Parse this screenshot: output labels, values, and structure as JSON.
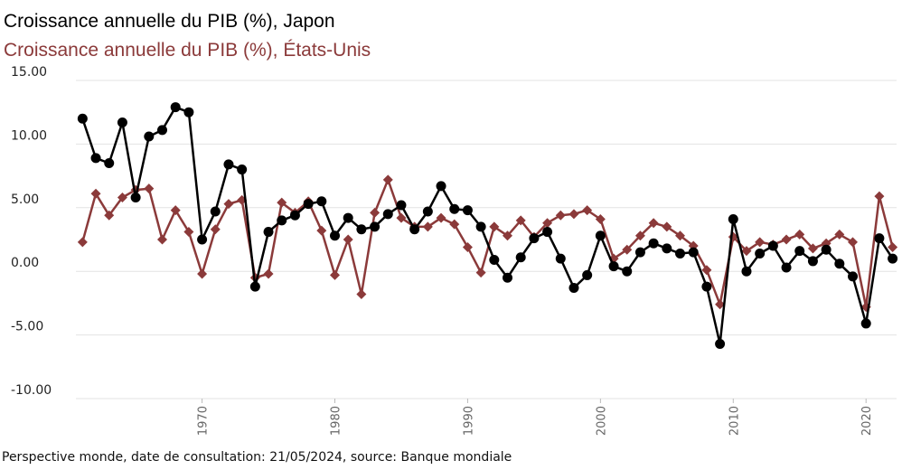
{
  "chart_data": {
    "type": "line",
    "title": "Croissance annuelle du PIB (%), Japon",
    "subtitle": "Croissance annuelle du PIB (%), États-Unis",
    "source": "Perspective monde, date de consultation: 21/05/2024, source: Banque mondiale",
    "ylim": [
      -10,
      15
    ],
    "xlim": [
      1960.5,
      2022.3
    ],
    "yticks": [
      "15.00",
      "10.00",
      "5.00",
      "0.00",
      "-5.00",
      "-10.00"
    ],
    "ytick_values": [
      15,
      10,
      5,
      0,
      -5,
      -10
    ],
    "xticks": [
      "1970",
      "1980",
      "1990",
      "2000",
      "2010",
      "2020"
    ],
    "xtick_values": [
      1970,
      1980,
      1990,
      2000,
      2010,
      2020
    ],
    "grid": true,
    "legend": "none",
    "x": [
      1961,
      1962,
      1963,
      1964,
      1965,
      1966,
      1967,
      1968,
      1969,
      1970,
      1971,
      1972,
      1973,
      1974,
      1975,
      1976,
      1977,
      1978,
      1979,
      1980,
      1981,
      1982,
      1983,
      1984,
      1985,
      1986,
      1987,
      1988,
      1989,
      1990,
      1991,
      1992,
      1993,
      1994,
      1995,
      1996,
      1997,
      1998,
      1999,
      2000,
      2001,
      2002,
      2003,
      2004,
      2005,
      2006,
      2007,
      2008,
      2009,
      2010,
      2011,
      2012,
      2013,
      2014,
      2015,
      2016,
      2017,
      2018,
      2019,
      2020,
      2021,
      2022
    ],
    "series": [
      {
        "name": "Japon",
        "color": "#000000",
        "marker": "circle",
        "values": [
          12.0,
          8.9,
          8.5,
          11.7,
          5.8,
          10.6,
          11.1,
          12.9,
          12.5,
          2.5,
          4.7,
          8.4,
          8.0,
          -1.2,
          3.1,
          4.0,
          4.4,
          5.3,
          5.5,
          2.8,
          4.2,
          3.3,
          3.5,
          4.5,
          5.2,
          3.3,
          4.7,
          6.7,
          4.9,
          4.8,
          3.5,
          0.9,
          -0.5,
          1.1,
          2.6,
          3.1,
          1.0,
          -1.3,
          -0.3,
          2.8,
          0.4,
          0.0,
          1.5,
          2.2,
          1.8,
          1.4,
          1.5,
          -1.2,
          -5.7,
          4.1,
          0.0,
          1.4,
          2.0,
          0.3,
          1.6,
          0.8,
          1.7,
          0.6,
          -0.4,
          -4.1,
          2.6,
          1.0
        ]
      },
      {
        "name": "États-Unis",
        "color": "#8b3a3a",
        "marker": "diamond",
        "values": [
          2.3,
          6.1,
          4.4,
          5.8,
          6.4,
          6.5,
          2.5,
          4.8,
          3.1,
          -0.2,
          3.3,
          5.3,
          5.6,
          -0.5,
          -0.2,
          5.4,
          4.6,
          5.5,
          3.2,
          -0.3,
          2.5,
          -1.8,
          4.6,
          7.2,
          4.2,
          3.5,
          3.5,
          4.2,
          3.7,
          1.9,
          -0.1,
          3.5,
          2.8,
          4.0,
          2.7,
          3.8,
          4.4,
          4.5,
          4.8,
          4.1,
          1.0,
          1.7,
          2.8,
          3.8,
          3.5,
          2.8,
          2.0,
          0.1,
          -2.6,
          2.7,
          1.6,
          2.3,
          2.1,
          2.5,
          2.9,
          1.8,
          2.2,
          2.9,
          2.3,
          -2.8,
          5.9,
          1.9
        ]
      }
    ]
  }
}
